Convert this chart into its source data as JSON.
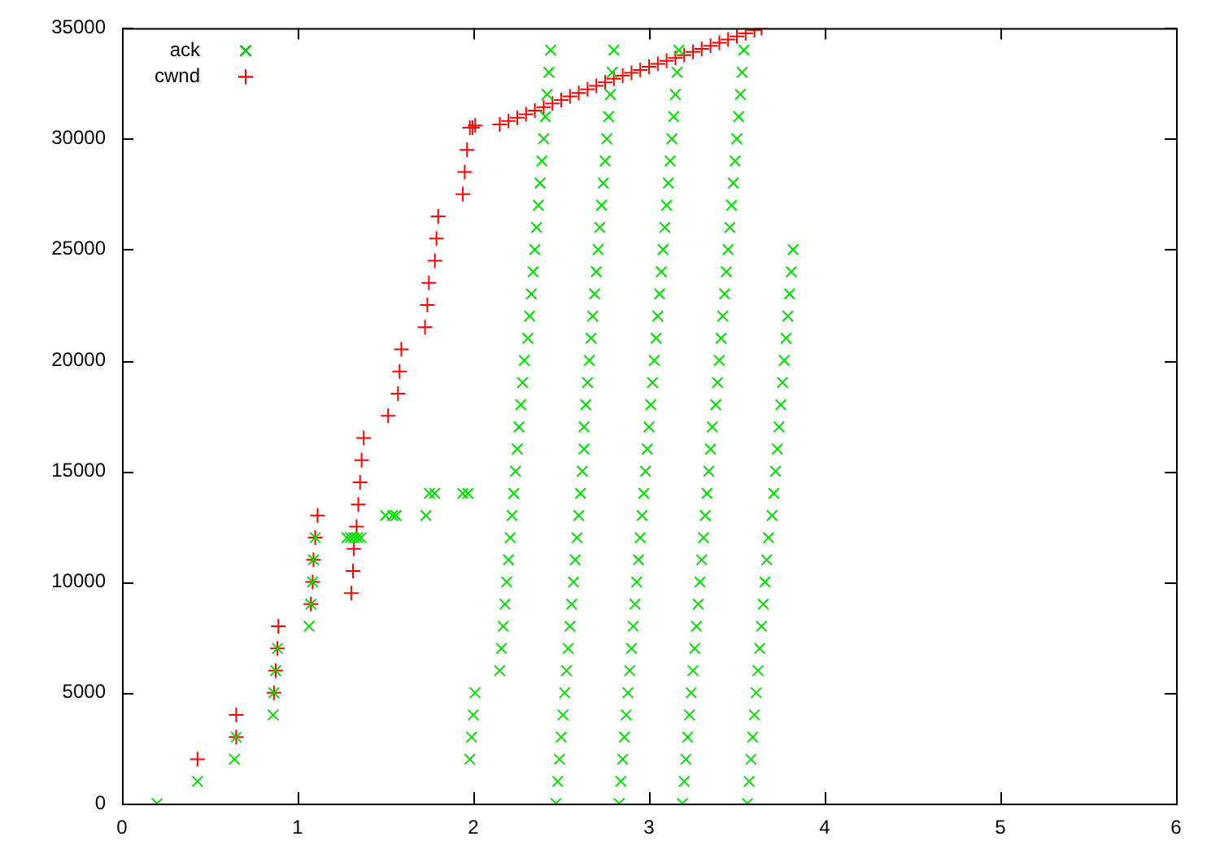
{
  "chart_data": {
    "type": "scatter",
    "xlim": [
      0,
      6
    ],
    "xticks": [
      0,
      1,
      2,
      3,
      4,
      5,
      6
    ],
    "ylim": [
      0,
      35000
    ],
    "yticks": [
      0,
      5000,
      10000,
      15000,
      20000,
      25000,
      30000,
      35000
    ],
    "grid": false,
    "legend": "top left",
    "series": [
      {
        "name": "ack",
        "color": "#00dd00",
        "marker": "x",
        "x": [
          0.2,
          0.43,
          0.64,
          0.65,
          0.86,
          0.865,
          0.875,
          0.885,
          1.065,
          1.075,
          1.085,
          1.09,
          1.1,
          1.28,
          1.3,
          1.32,
          1.34,
          1.36,
          1.5,
          1.54,
          1.56,
          1.73,
          1.75,
          1.78,
          1.94,
          1.97,
          1.98,
          1.99,
          2,
          2.01,
          2.15,
          2.16,
          2.17,
          2.18,
          2.19,
          2.2,
          2.21,
          2.22,
          2.23,
          2.24,
          2.25,
          2.26,
          2.27,
          2.28,
          2.29,
          2.31,
          2.32,
          2.33,
          2.34,
          2.35,
          2.36,
          2.37,
          2.38,
          2.39,
          2.4,
          2.41,
          2.42,
          2.43,
          2.44,
          2.47,
          2.48,
          2.49,
          2.5,
          2.51,
          2.52,
          2.53,
          2.54,
          2.55,
          2.56,
          2.57,
          2.58,
          2.59,
          2.6,
          2.61,
          2.62,
          2.63,
          2.63,
          2.64,
          2.65,
          2.66,
          2.67,
          2.68,
          2.69,
          2.7,
          2.71,
          2.72,
          2.73,
          2.74,
          2.75,
          2.76,
          2.77,
          2.78,
          2.79,
          2.8,
          2.83,
          2.84,
          2.85,
          2.86,
          2.87,
          2.88,
          2.89,
          2.9,
          2.91,
          2.92,
          2.93,
          2.94,
          2.95,
          2.96,
          2.97,
          2.98,
          2.99,
          3,
          3.01,
          3.02,
          3.03,
          3.04,
          3.05,
          3.06,
          3.07,
          3.08,
          3.09,
          3.1,
          3.11,
          3.12,
          3.13,
          3.14,
          3.15,
          3.16,
          3.17,
          3.19,
          3.2,
          3.21,
          3.22,
          3.23,
          3.24,
          3.25,
          3.26,
          3.27,
          3.28,
          3.29,
          3.3,
          3.31,
          3.32,
          3.33,
          3.34,
          3.35,
          3.36,
          3.38,
          3.39,
          3.4,
          3.41,
          3.42,
          3.43,
          3.44,
          3.45,
          3.46,
          3.47,
          3.48,
          3.49,
          3.5,
          3.51,
          3.52,
          3.53,
          3.54,
          3.56,
          3.57,
          3.58,
          3.59,
          3.6,
          3.61,
          3.62,
          3.63,
          3.64,
          3.65,
          3.66,
          3.67,
          3.68,
          3.7,
          3.71,
          3.72,
          3.73,
          3.74,
          3.75,
          3.76,
          3.77,
          3.78,
          3.79,
          3.8,
          3.81,
          3.82
        ],
        "values": [
          0,
          1000,
          2000,
          3000,
          4000,
          5000,
          6000,
          7000,
          8000,
          9000,
          10000,
          11000,
          12000,
          12000,
          12000,
          12000,
          12000,
          12000,
          13000,
          13000,
          13000,
          13000,
          14000,
          14000,
          14000,
          14000,
          2000,
          3000,
          4000,
          5000,
          6000,
          7000,
          8000,
          9000,
          10000,
          11000,
          12000,
          13000,
          14000,
          15000,
          16000,
          17000,
          18000,
          19000,
          20000,
          21000,
          22000,
          23000,
          24000,
          25000,
          26000,
          27000,
          28000,
          29000,
          30000,
          31000,
          32000,
          33000,
          34000,
          0,
          1000,
          2000,
          3000,
          4000,
          5000,
          6000,
          7000,
          8000,
          9000,
          10000,
          11000,
          12000,
          13000,
          14000,
          15000,
          16000,
          17000,
          18000,
          19000,
          20000,
          21000,
          22000,
          23000,
          24000,
          25000,
          26000,
          27000,
          28000,
          29000,
          30000,
          31000,
          32000,
          33000,
          34000,
          0,
          1000,
          2000,
          3000,
          4000,
          5000,
          6000,
          7000,
          8000,
          9000,
          10000,
          11000,
          12000,
          13000,
          14000,
          15000,
          16000,
          17000,
          18000,
          19000,
          20000,
          21000,
          22000,
          23000,
          24000,
          25000,
          26000,
          27000,
          28000,
          29000,
          30000,
          31000,
          32000,
          33000,
          34000,
          0,
          1000,
          2000,
          3000,
          4000,
          5000,
          6000,
          7000,
          8000,
          9000,
          10000,
          11000,
          12000,
          13000,
          14000,
          15000,
          16000,
          17000,
          18000,
          19000,
          20000,
          21000,
          22000,
          23000,
          24000,
          25000,
          26000,
          27000,
          28000,
          29000,
          30000,
          31000,
          32000,
          33000,
          34000,
          0,
          1000,
          2000,
          3000,
          4000,
          5000,
          6000,
          7000,
          8000,
          9000,
          10000,
          11000,
          12000,
          13000,
          14000,
          15000,
          16000,
          17000,
          18000,
          19000,
          20000,
          21000,
          22000,
          23000,
          24000,
          25000
        ]
      },
      {
        "name": "cwnd",
        "color": "#ff0000",
        "marker": "cross",
        "x": [
          0.43,
          0.65,
          0.65,
          0.865,
          0.875,
          0.885,
          0.89,
          1.075,
          1.085,
          1.09,
          1.1,
          1.113,
          1.305,
          1.315,
          1.32,
          1.335,
          1.345,
          1.355,
          1.364,
          1.376,
          1.515,
          1.571,
          1.58,
          1.59,
          1.725,
          1.738,
          1.747,
          1.781,
          1.79,
          1.8,
          1.94,
          1.951,
          1.964,
          1.98,
          1.995,
          2.01,
          2.15,
          2.2,
          2.25,
          2.3,
          2.35,
          2.4,
          2.45,
          2.5,
          2.55,
          2.6,
          2.65,
          2.7,
          2.75,
          2.8,
          2.85,
          2.9,
          2.95,
          3,
          3.05,
          3.1,
          3.15,
          3.2,
          3.25,
          3.3,
          3.35,
          3.4,
          3.45,
          3.5,
          3.55,
          3.6,
          3.64
        ],
        "values": [
          2000,
          3000,
          4000,
          5000,
          6000,
          7000,
          8000,
          9000,
          10000,
          11000,
          12000,
          13000,
          9500,
          10500,
          11500,
          12500,
          13500,
          14500,
          15500,
          16500,
          17500,
          18500,
          19500,
          20500,
          21500,
          22500,
          23500,
          24500,
          25500,
          26500,
          27500,
          28500,
          29500,
          30500,
          30500,
          30600,
          30650,
          30800,
          30950,
          31110,
          31270,
          31430,
          31590,
          31750,
          31910,
          32070,
          32230,
          32390,
          32550,
          32710,
          32850,
          32980,
          33110,
          33250,
          33380,
          33520,
          33650,
          33780,
          33920,
          34060,
          34200,
          34340,
          34480,
          34620,
          34760,
          34900,
          35000
        ]
      }
    ]
  }
}
